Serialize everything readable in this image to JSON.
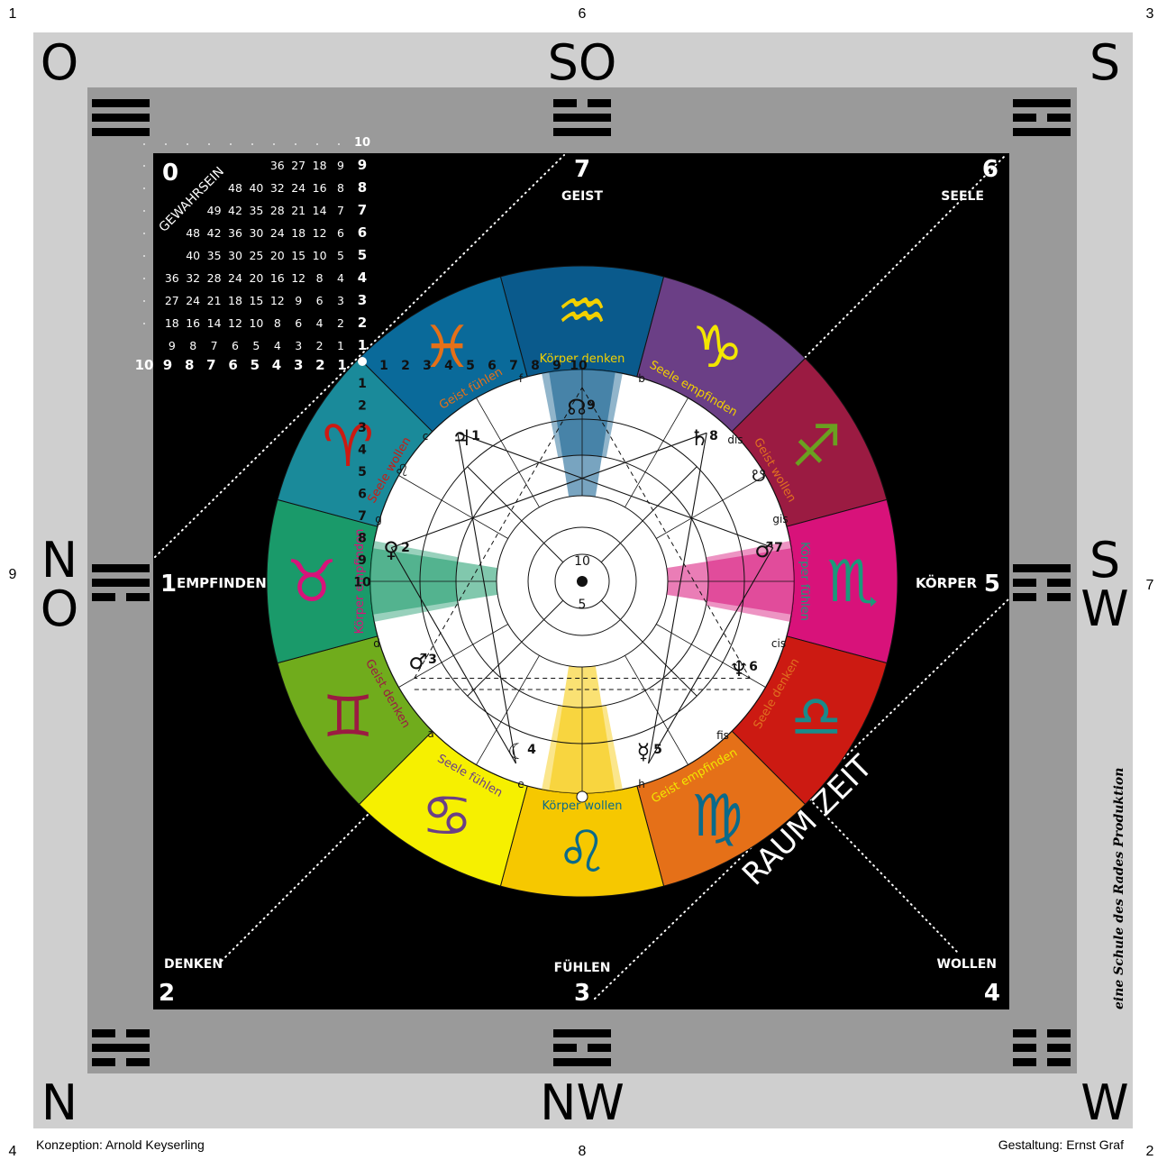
{
  "corner_numbers": {
    "top_left": "1",
    "top_center": "6",
    "top_right": "3",
    "left_center": "9",
    "right_center": "7",
    "bottom_left": "4",
    "bottom_center": "8",
    "bottom_right": "2"
  },
  "compass": {
    "top_left": "O",
    "top_center": "SO",
    "top_right": "S",
    "left_1": "N",
    "left_2": "O",
    "right_1": "S",
    "right_2": "W",
    "bottom_left": "N",
    "bottom_center": "NW",
    "bottom_right": "W"
  },
  "directions": {
    "geist": {
      "num": "7",
      "label": "GEIST"
    },
    "seele": {
      "num": "6",
      "label": "SEELE"
    },
    "empfinden": {
      "num": "1",
      "label": "EMPFINDEN"
    },
    "koerper": {
      "num": "5",
      "label": "KÖRPER"
    },
    "denken": {
      "num": "2",
      "label": "DENKEN"
    },
    "fuehlen": {
      "num": "3",
      "label": "FÜHLEN"
    },
    "wollen": {
      "num": "4",
      "label": "WOLLEN"
    }
  },
  "zero_label": "0",
  "gewahrsein": "GEWAHRSEIN",
  "raum_zeit": "RAUM ZEIT",
  "side_note": "eine Schule des Rades Produktion",
  "credits": {
    "left": "Konzeption: Arnold Keyserling",
    "right": "Gestaltung: Ernst Graf"
  },
  "table": {
    "right_labels": [
      "10",
      "9",
      "8",
      "7",
      "6",
      "5",
      "4",
      "3",
      "2",
      "1"
    ],
    "rows": [
      [
        "36",
        "27",
        "18",
        "9"
      ],
      [
        "48",
        "40",
        "32",
        "24",
        "16",
        "8"
      ],
      [
        "49",
        "42",
        "35",
        "28",
        "21",
        "14",
        "7"
      ],
      [
        "48",
        "42",
        "36",
        "30",
        "24",
        "18",
        "12",
        "6"
      ],
      [
        "40",
        "35",
        "30",
        "25",
        "20",
        "15",
        "10",
        "5"
      ],
      [
        "36",
        "32",
        "28",
        "24",
        "20",
        "16",
        "12",
        "8",
        "4"
      ],
      [
        "27",
        "24",
        "21",
        "18",
        "15",
        "12",
        "9",
        "6",
        "3"
      ],
      [
        "18",
        "16",
        "14",
        "12",
        "10",
        "8",
        "6",
        "4",
        "2"
      ],
      [
        "9",
        "8",
        "7",
        "6",
        "5",
        "4",
        "3",
        "2",
        "1"
      ]
    ],
    "bottom_row": [
      "10",
      "9",
      "8",
      "7",
      "6",
      "5",
      "4",
      "3",
      "2",
      "1"
    ],
    "top_count": [
      "1",
      "2",
      "3",
      "4",
      "5",
      "6",
      "7",
      "8",
      "9",
      "10"
    ],
    "left_count": [
      "1",
      "2",
      "3",
      "4",
      "5",
      "6",
      "7",
      "8",
      "9",
      "10"
    ]
  },
  "segments": [
    {
      "label": "Körper denken",
      "glyph": "♒",
      "color": "#0a5a8c",
      "glyph_color": "#f2d000",
      "label_color": "#f2d000"
    },
    {
      "label": "Seele empfinden",
      "glyph": "♑",
      "color": "#6b3f86",
      "glyph_color": "#f2e600",
      "label_color": "#f2d000"
    },
    {
      "label": "Geist wollen",
      "glyph": "♐",
      "color": "#9b1b42",
      "glyph_color": "#6aa020",
      "label_color": "#e07020"
    },
    {
      "label": "Körper fühlen",
      "glyph": "♏",
      "color": "#d8127a",
      "glyph_color": "#1a9a7a",
      "label_color": "#1a9a7a"
    },
    {
      "label": "Seele denken",
      "glyph": "♎",
      "color": "#cc1a12",
      "glyph_color": "#1a8a8a",
      "label_color": "#e07020"
    },
    {
      "label": "Geist empfinden",
      "glyph": "♍",
      "color": "#e57018",
      "glyph_color": "#0a6a8a",
      "label_color": "#f2e600"
    },
    {
      "label": "Körper wollen",
      "glyph": "♌",
      "color": "#f6c800",
      "glyph_color": "#0a6a8a",
      "label_color": "#0a6a8a"
    },
    {
      "label": "Seele fühlen",
      "glyph": "♋",
      "color": "#f6f000",
      "glyph_color": "#6b3f86",
      "label_color": "#6b3f86"
    },
    {
      "label": "Geist denken",
      "glyph": "♊",
      "color": "#70ac1c",
      "glyph_color": "#9b1b42",
      "label_color": "#9b1b42"
    },
    {
      "label": "Körper empfinden",
      "glyph": "♉",
      "color": "#1a9a6a",
      "glyph_color": "#d8127a",
      "label_color": "#d8127a"
    },
    {
      "label": "Seele wollen",
      "glyph": "♈",
      "color": "#1a8a9a",
      "glyph_color": "#cc1a12",
      "label_color": "#cc1a12"
    },
    {
      "label": "Geist fühlen",
      "glyph": "♓",
      "color": "#0a6a9a",
      "glyph_color": "#e57018",
      "label_color": "#e57018"
    }
  ],
  "notes": {
    "b": "b",
    "dis": "dis",
    "gis": "gis",
    "cis": "cis",
    "fis": "fis",
    "h": "h",
    "e": "e",
    "a": "a",
    "d": "d",
    "g": "g",
    "f": "f",
    "c": "c"
  },
  "planets": {
    "p9": {
      "num": "9",
      "glyph": "☊"
    },
    "p8": {
      "num": "8",
      "glyph": "♄"
    },
    "p7": {
      "num": "7",
      "glyph": "♂"
    },
    "p6": {
      "num": "6",
      "glyph": "♆"
    },
    "p5": {
      "num": "5",
      "glyph": "☿"
    },
    "p4": {
      "num": "4",
      "glyph": "☾"
    },
    "p3": {
      "num": "3",
      "glyph": "♂"
    },
    "p2": {
      "num": "2",
      "glyph": "♀"
    },
    "p1": {
      "num": "1",
      "glyph": "♃"
    },
    "pvi": {
      "glyph": "♌"
    },
    "pomega": {
      "glyph": "☋"
    }
  },
  "center": {
    "top": "10",
    "bottom": "5"
  }
}
